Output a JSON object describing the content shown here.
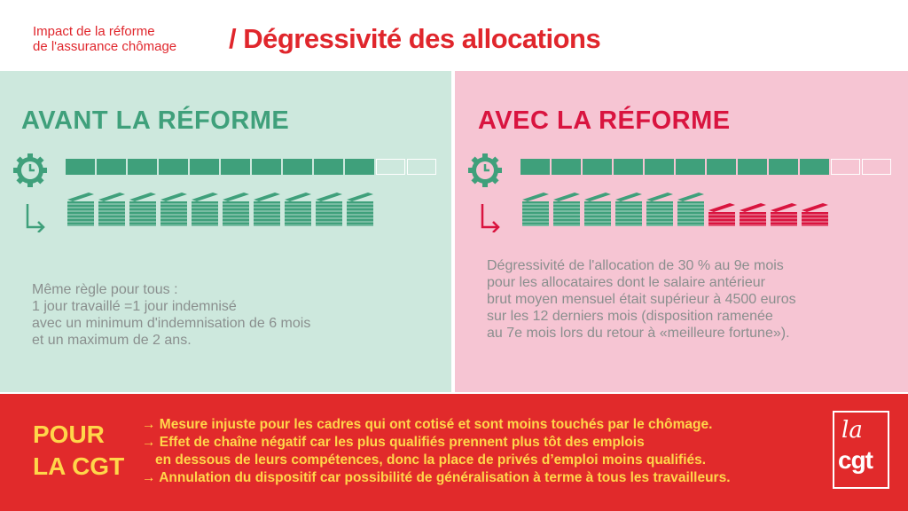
{
  "header": {
    "subtitle_line1": "Impact de la réforme",
    "subtitle_line2": "de l'assurance chômage",
    "title": "/ Dégressivité des allocations"
  },
  "colors": {
    "red": "#e0262c",
    "green": "#3fa07b",
    "pink_red": "#d9143f",
    "left_bg": "#cde8dd",
    "right_bg": "#f6c5d3",
    "bottom_bg": "#e12a2b",
    "bottom_text": "#ffd64a"
  },
  "avant": {
    "heading": "AVANT LA RÉFORME",
    "icons": [
      "clock-gear-icon",
      "arrow-down-right-icon",
      "money-stack-icon"
    ],
    "duration_filled": 10,
    "duration_total": 12,
    "money_stacks_full": 10,
    "money_stacks_reduced": 0,
    "text": [
      "Même règle pour tous :",
      "1 jour travaillé =1 jour indemnisé",
      "avec un minimum d'indemnisation de 6 mois",
      "et un maximum de 2 ans."
    ]
  },
  "avec": {
    "heading": "AVEC LA RÉFORME",
    "icons": [
      "clock-gear-icon",
      "arrow-down-right-icon",
      "money-stack-icon"
    ],
    "duration_filled": 10,
    "duration_total": 12,
    "money_stacks_full": 6,
    "money_stacks_reduced": 4,
    "text": [
      "Dégressivité de l'allocation de 30 % au 9e mois",
      "pour les allocataires dont le salaire antérieur",
      "brut moyen mensuel était supérieur à  4500 euros",
      "sur les 12 derniers mois (disposition ramenée",
      "au 7e mois lors du retour à «meilleure fortune»)."
    ]
  },
  "bottom": {
    "title_line1": "POUR",
    "title_line2": "LA CGT",
    "items": [
      "→ Mesure injuste pour les cadres qui ont cotisé et sont moins touchés par le chômage.",
      "→ Effet de chaîne négatif car les plus qualifiés prennent plus tôt des emplois",
      "en dessous de leurs compétences, donc la place de privés d’emploi moins qualifiés.",
      "→ Annulation du dispositif car possibilité de généralisation à terme à tous les travailleurs."
    ]
  },
  "logo": {
    "line1": "la",
    "line2": "cgt"
  }
}
